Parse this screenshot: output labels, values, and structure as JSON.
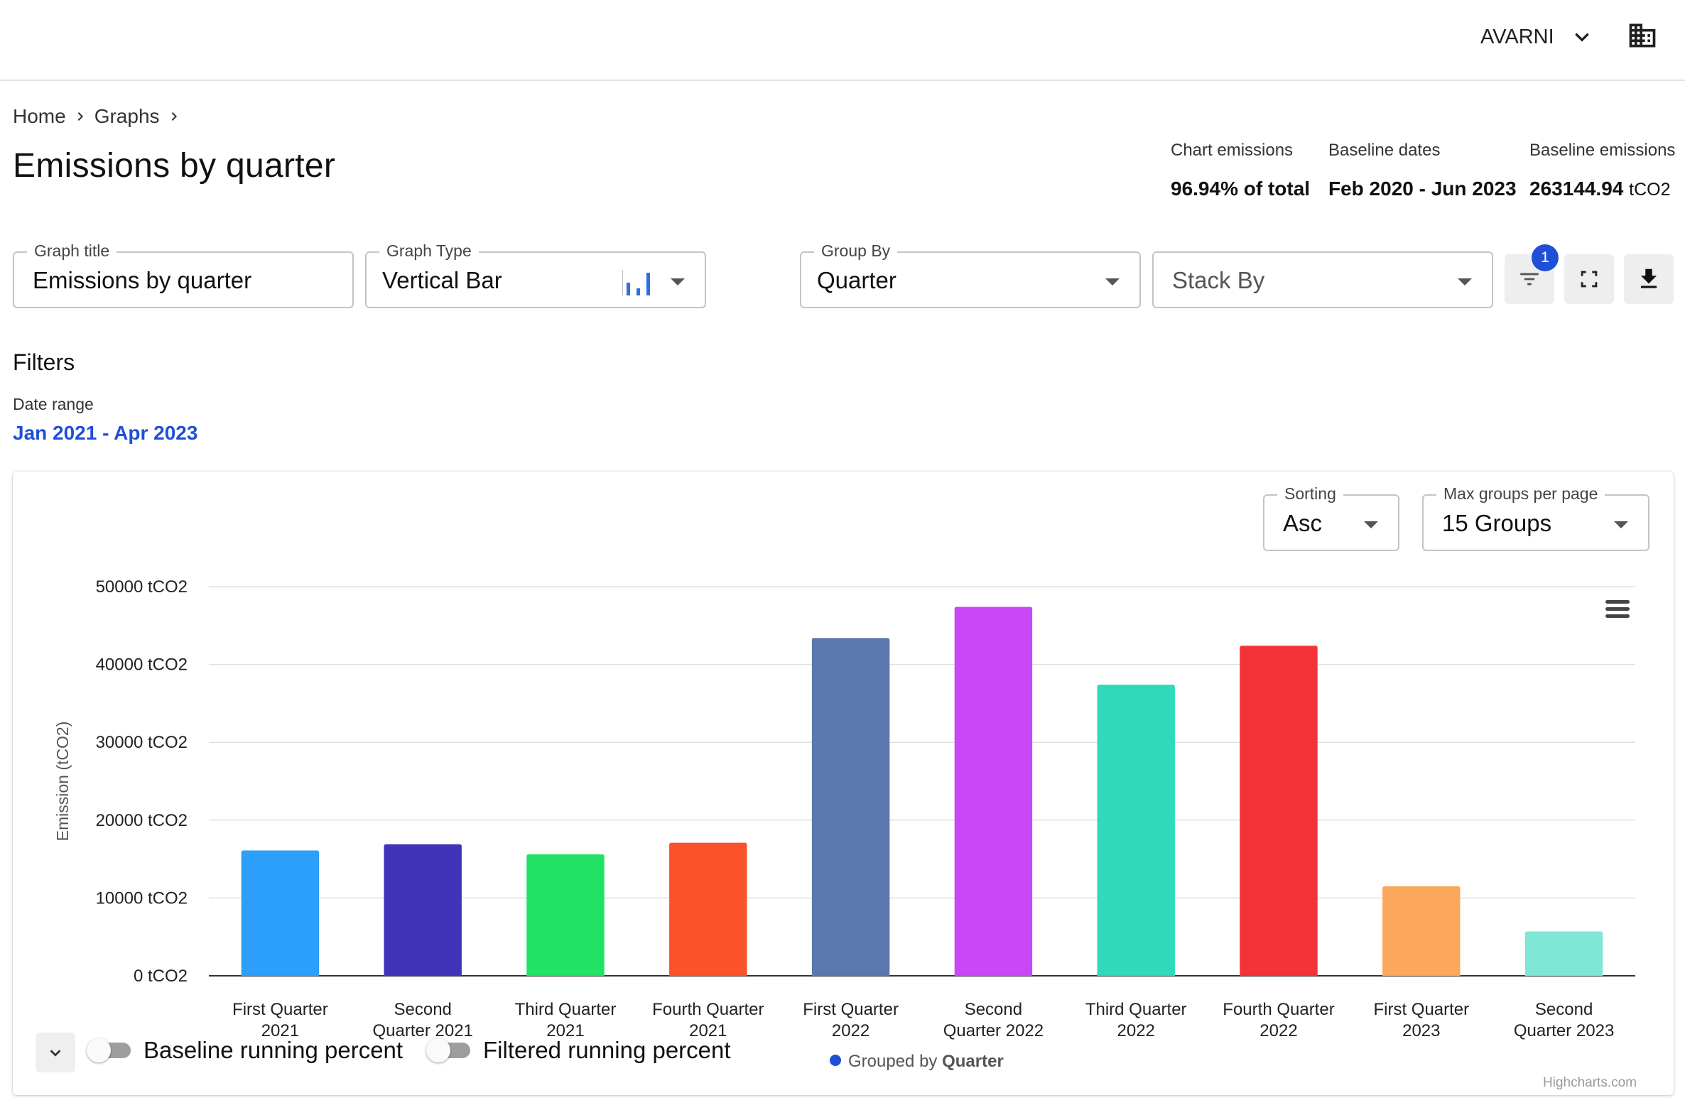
{
  "header": {
    "org_name": "AVARNI",
    "org_icon": "chevron-down-icon",
    "building_icon": "building-icon"
  },
  "breadcrumb": [
    "Home",
    "Graphs"
  ],
  "page_title": "Emissions by quarter",
  "stats": [
    {
      "label": "Chart emissions",
      "value": "96.94% of total",
      "unit": ""
    },
    {
      "label": "Baseline dates",
      "value": "Feb 2020 - Jun 2023",
      "unit": ""
    },
    {
      "label": "Baseline emissions",
      "value": "263144.94",
      "unit": "tCO2"
    }
  ],
  "controls": {
    "graph_title": {
      "label": "Graph title",
      "value": "Emissions by quarter"
    },
    "graph_type": {
      "label": "Graph Type",
      "value": "Vertical Bar",
      "icon": "bar-chart-icon"
    },
    "group_by": {
      "label": "Group By",
      "value": "Quarter"
    },
    "stack_by": {
      "placeholder": "Stack By"
    },
    "filter_badge": "1"
  },
  "filters": {
    "heading": "Filters",
    "date_range_label": "Date range",
    "date_range_value": "Jan 2021 - Apr 2023"
  },
  "chart_options": {
    "sorting": {
      "label": "Sorting",
      "value": "Asc"
    },
    "max_groups": {
      "label": "Max groups per page",
      "value": "15 Groups"
    }
  },
  "chart_data": {
    "type": "bar",
    "orientation": "vertical",
    "ylabel": "Emission (tCO2)",
    "xlabel": "",
    "ylim": [
      0,
      50000
    ],
    "yticks": [
      0,
      10000,
      20000,
      30000,
      40000,
      50000
    ],
    "ytick_labels": [
      "0 tCO2",
      "10000 tCO2",
      "20000 tCO2",
      "30000 tCO2",
      "40000 tCO2",
      "50000 tCO2"
    ],
    "grid": true,
    "categories": [
      [
        "First Quarter",
        "2021"
      ],
      [
        "Second",
        "Quarter 2021"
      ],
      [
        "Third Quarter",
        "2021"
      ],
      [
        "Fourth Quarter",
        "2021"
      ],
      [
        "First Quarter",
        "2022"
      ],
      [
        "Second",
        "Quarter 2022"
      ],
      [
        "Third Quarter",
        "2022"
      ],
      [
        "Fourth Quarter",
        "2022"
      ],
      [
        "First Quarter",
        "2023"
      ],
      [
        "Second",
        "Quarter 2023"
      ]
    ],
    "values": [
      16100,
      16900,
      15600,
      17100,
      43400,
      47400,
      37400,
      42400,
      11500,
      5700
    ],
    "colors": [
      "#2b9ffa",
      "#4134b8",
      "#21e264",
      "#fb522c",
      "#5a77ae",
      "#c947f5",
      "#2fd9bc",
      "#f33337",
      "#fba75c",
      "#80e6d6"
    ],
    "legend": {
      "prefix": "Grouped by",
      "name": "Quarter",
      "color": "#1f4fd6",
      "position": "bottom-center"
    },
    "credits": "Highcharts.com"
  },
  "bottom_toggles": [
    {
      "label": "Baseline running percent",
      "on": false
    },
    {
      "label": "Filtered running percent",
      "on": false
    }
  ]
}
